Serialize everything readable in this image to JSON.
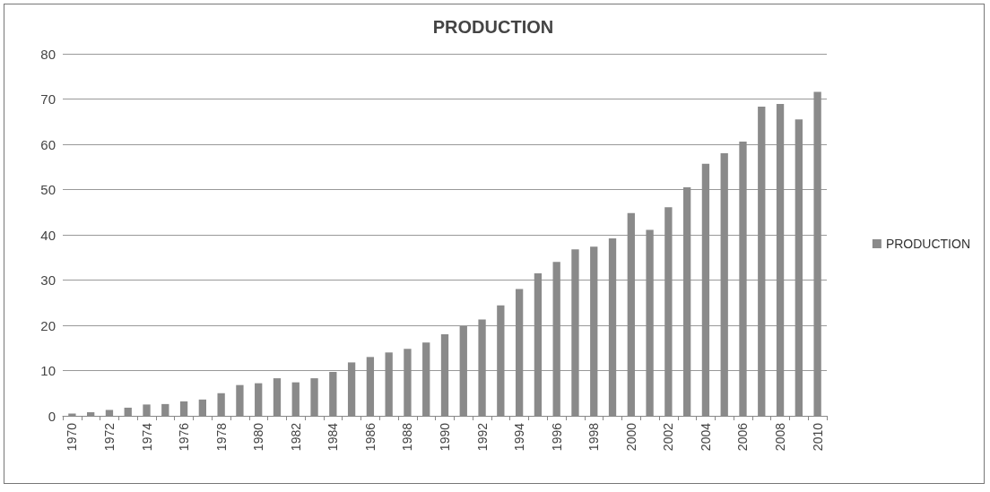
{
  "chart_data": {
    "type": "bar",
    "title": "PRODUCTION",
    "categories": [
      "1970",
      null,
      "1972",
      null,
      "1974",
      null,
      "1976",
      null,
      "1978",
      null,
      "1980",
      null,
      "1982",
      null,
      "1984",
      null,
      "1986",
      null,
      "1988",
      null,
      "1990",
      null,
      "1992",
      null,
      "1994",
      null,
      "1996",
      null,
      "1998",
      null,
      "2000",
      null,
      "2002",
      null,
      "2004",
      null,
      "2006",
      null,
      "2008",
      null,
      "2010"
    ],
    "series": [
      {
        "name": "PRODUCTION",
        "color": "#8a8a8a",
        "values": [
          0.5,
          0.8,
          1.3,
          1.8,
          2.5,
          2.6,
          3.2,
          3.6,
          5,
          6.8,
          7.2,
          8.3,
          7.4,
          8.3,
          9.7,
          11.8,
          13,
          14,
          14.8,
          16.2,
          18,
          19.8,
          21.3,
          24.4,
          28,
          31.5,
          34,
          36.8,
          37.4,
          39.2,
          44.8,
          41.1,
          46.1,
          50.5,
          55.7,
          58,
          60.6,
          68.3,
          68.9,
          65.5,
          71.6
        ]
      }
    ],
    "ylim": [
      0,
      80
    ],
    "yticks": [
      0,
      10,
      20,
      30,
      40,
      50,
      60,
      70,
      80
    ],
    "grid": "y",
    "legend": "right"
  }
}
